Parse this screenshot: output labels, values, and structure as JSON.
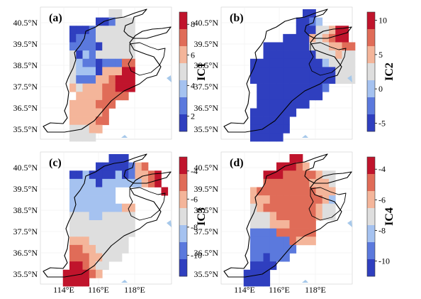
{
  "colors": {
    "c1": "#2f3fbf",
    "c2": "#5b79dd",
    "c3": "#a5c2f0",
    "c4": "#dedede",
    "c5": "#f4b59a",
    "c6": "#e06c58",
    "c7": "#c0142c",
    "background": "#ffffff",
    "water": "#a6c8ea",
    "boundary": "#000000"
  },
  "chart_data": [
    {
      "type": "heatmap",
      "panel_label": "(a)",
      "colorbar_title": "IC1",
      "colorbar_ticks": [
        "2",
        "4",
        "6",
        "8"
      ],
      "colorbar_range": [
        1.0,
        8.8
      ],
      "grid_rows": [
        "..........gg........",
        "........112444......",
        "....1112444444......",
        "....1222444444......",
        "....2222144444......",
        "....4132444444......",
        "....4322122266......",
        "....4333155577......",
        "....4222556777......",
        "....5455566777......",
        ".....55556666.......",
        "....5555666.........",
        "....555556..........",
        "....555566..........",
        "....44455...........",
        "....4444............"
      ]
    },
    {
      "type": "heatmap",
      "panel_label": "(b)",
      "colorbar_title": "IC2",
      "colorbar_ticks": [
        "10",
        "5",
        "0",
        "-5"
      ],
      "colorbar_range": [
        -6.2,
        11.2
      ],
      "grid_rows": [
        "............11......",
        "...........1123.....",
        "...........11144577.",
        ".........1111545677.",
        "......11111114445566",
        "......11111111444544",
        "....1111111111134444",
        "....1111111111111444",
        "....1111111111111444",
        ".....11111111112....",
        ".....1111111111.....",
        ".....11111111.......",
        "....1111111.........",
        "....111111..........",
        "....111111..........",
        "....11111..........."
      ]
    },
    {
      "type": "heatmap",
      "panel_label": "(c)",
      "colorbar_title": "IC3",
      "colorbar_ticks": [
        "-4",
        "-6",
        "-8",
        "-10"
      ],
      "colorbar_range": [
        -11.5,
        -3.0
      ],
      "grid_rows": [
        "..........111.......",
        "........11111256....",
        "....11311113125567..",
        "....33331333333567..",
        "....3333333.......7.",
        "....3333333.........",
        "....3333333355......",
        "....4443344444......",
        "....4444444444......",
        "....4444444444......",
        "....555444444.......",
        "....665544444.......",
        "....66655444........",
        "....776544..........",
        "...777765...........",
        "...7777............."
      ]
    },
    {
      "type": "heatmap",
      "panel_label": "(d)",
      "colorbar_title": "IC4",
      "colorbar_ticks": [
        "-4",
        "-6",
        "-8",
        "-10"
      ],
      "colorbar_range": [
        -11.0,
        -3.2
      ],
      "grid_rows": [
        "..........77........",
        "........77765.......",
        "......77766666544...",
        "......66666665554...",
        "....5666666666555...",
        "....5556666666653...",
        "....4566666666544...",
        "....4445666666544...",
        "....4445556666......",
        "....2222666666......",
        "....2222226555......",
        "....2222222.........",
        "....221222..........",
        "....1111............",
        "...1111.............",
        "...1111............."
      ]
    }
  ],
  "axes": {
    "lat_labels": [
      "40.5°N",
      "39.5°N",
      "38.5°N",
      "37.5°N",
      "36.5°N",
      "35.5°N"
    ],
    "lon_labels": [
      "114°E",
      "116°E",
      "118°E"
    ]
  }
}
